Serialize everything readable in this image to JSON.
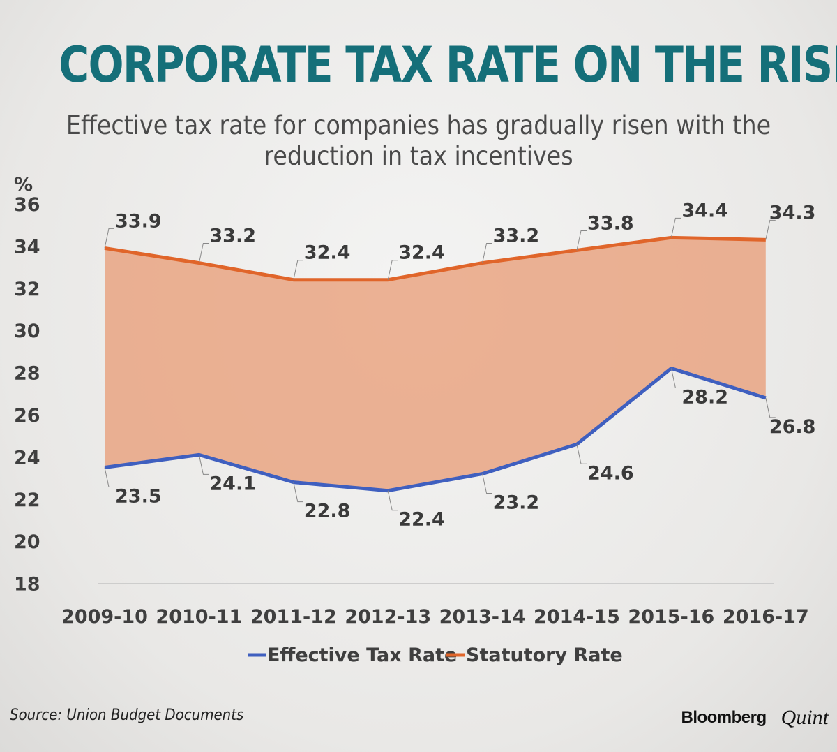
{
  "title": "CORPORATE TAX RATE ON THE RISE",
  "subtitle": "Effective tax rate for companies has gradually risen with the reduction in tax incentives",
  "source": "Source: Union Budget Documents",
  "logo": {
    "left": "Bloomberg",
    "right": "Quint"
  },
  "chart_data": {
    "type": "line",
    "title": "CORPORATE TAX RATE ON THE RISE",
    "ylabel": "%",
    "xlabel": "",
    "ylim": [
      18,
      36
    ],
    "yticks": [
      18,
      20,
      22,
      24,
      26,
      28,
      30,
      32,
      34,
      36
    ],
    "categories": [
      "2009-10",
      "2010-11",
      "2011-12",
      "2012-13",
      "2013-14",
      "2014-15",
      "2015-16",
      "2016-17"
    ],
    "series": [
      {
        "name": "Effective Tax Rate",
        "color": "#3f5fbf",
        "values": [
          23.5,
          24.1,
          22.8,
          22.4,
          23.2,
          24.6,
          28.2,
          26.8
        ]
      },
      {
        "name": "Statutory Rate",
        "color": "#e0652a",
        "values": [
          33.9,
          33.2,
          32.4,
          32.4,
          33.2,
          33.8,
          34.4,
          34.3
        ]
      }
    ],
    "fill_between_color": "#e8a07c",
    "grid": false,
    "legend": "bottom"
  }
}
